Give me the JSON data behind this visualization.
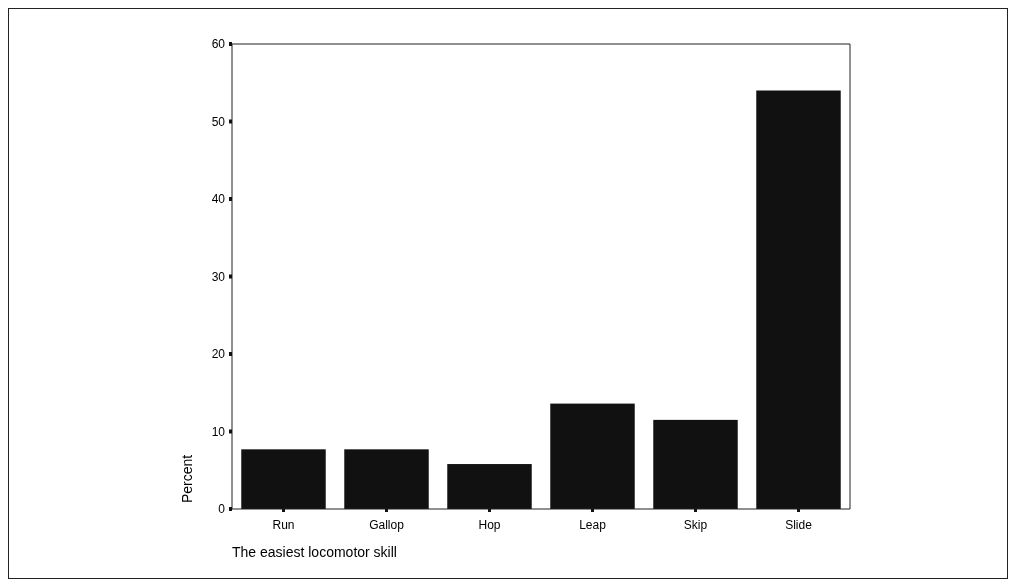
{
  "chart_data": {
    "type": "bar",
    "xlabel": "The easiest locomotor skill",
    "ylabel": "Percent",
    "categories": [
      "Run",
      "Gallop",
      "Hop",
      "Leap",
      "Skip",
      "Slide"
    ],
    "values": [
      7.7,
      7.7,
      5.8,
      13.6,
      11.5,
      54
    ],
    "color": "#111111",
    "ylim": [
      0,
      60
    ],
    "yticks": [
      0,
      10,
      20,
      30,
      40,
      50,
      60
    ],
    "grid": false
  }
}
